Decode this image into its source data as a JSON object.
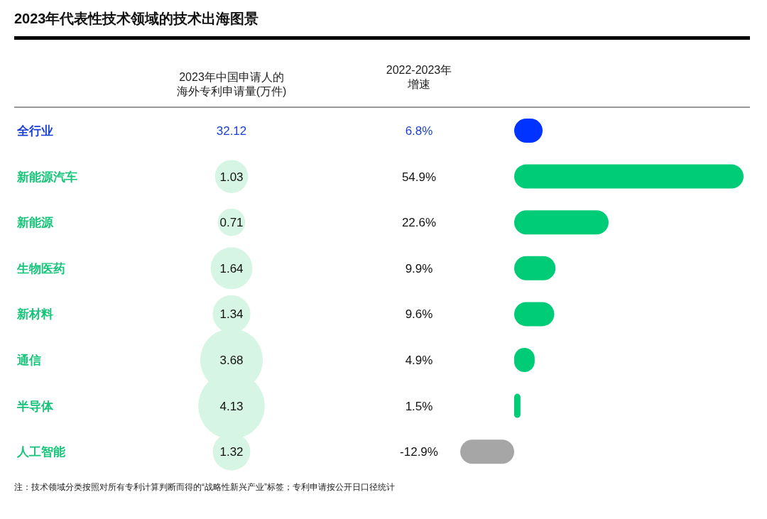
{
  "chart_data": [
    {
      "type": "other",
      "title": "2023年代表性技术领域的技术出海图景",
      "xlabel": "2023年中国申请人的海外专利申请量(万件)",
      "values": [
        32.12,
        1.03,
        0.71,
        1.64,
        1.34,
        3.68,
        4.13,
        1.32
      ],
      "colors": [
        null,
        "#d6f5e5",
        "#d6f5e5",
        "#d6f5e5",
        "#d6f5e5",
        "#d6f5e5",
        "#d6f5e5",
        "#d6f5e5"
      ],
      "data_labels": true
    },
    {
      "type": "bar",
      "orientation": "horizontal",
      "xlabel": "2022-2023年增速",
      "categories": [
        "全行业",
        "新能源汽车",
        "新能源",
        "生物医药",
        "新材料",
        "通信",
        "半导体",
        "人工智能"
      ],
      "values": [
        6.8,
        54.9,
        22.6,
        9.9,
        9.6,
        4.9,
        1.5,
        -12.9
      ],
      "colors": [
        "#0033ff",
        "#00cc77",
        "#00cc77",
        "#00cc77",
        "#00cc77",
        "#00cc77",
        "#00cc77",
        "#a6a6a6"
      ],
      "value_labels": [
        "6.8%",
        "54.9%",
        "22.6%",
        "9.9%",
        "9.6%",
        "4.9%",
        "1.5%",
        "-12.9%"
      ],
      "annotations": [
        "注：技术领域分类按照对所有专利计算判断而得的“战略性新兴产业”标签；专利申请按公开日口径统计"
      ]
    }
  ]
}
